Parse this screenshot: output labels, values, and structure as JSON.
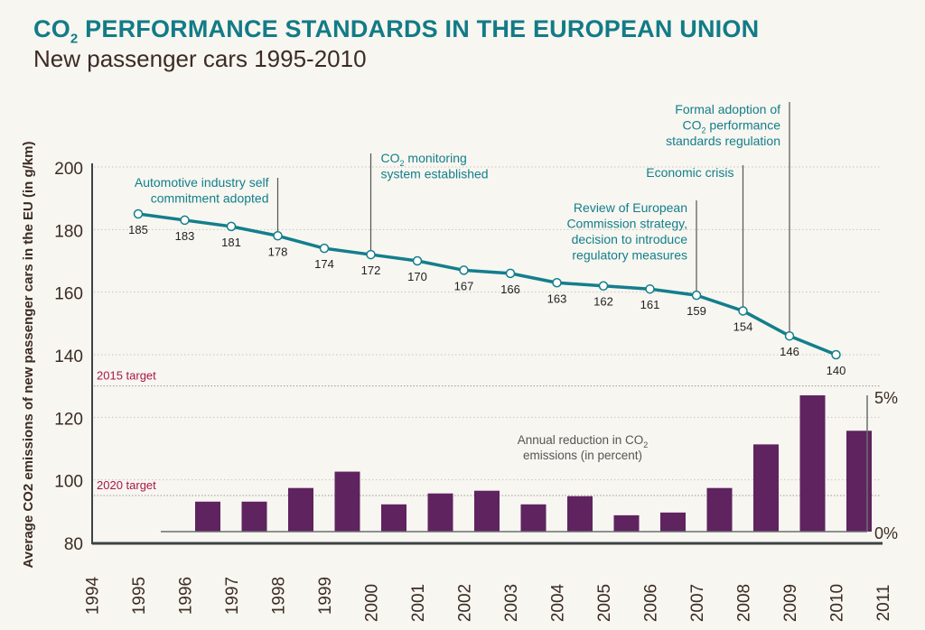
{
  "header": {
    "title_pre": "CO",
    "title_sub": "2",
    "title_post": " PERFORMANCE STANDARDS IN THE EUROPEAN UNION",
    "subtitle": "New passenger cars 1995-2010"
  },
  "colors": {
    "line": "#137e8c",
    "bars": "#5f2360",
    "targets": "#a8174a",
    "text": "#3d2b25",
    "background": "#f7f6f0"
  },
  "chart_data": {
    "type": "line+bar",
    "ylabel": "Average CO2 emissions of new passenger cars in the EU (in g/km)",
    "ylim": [
      80,
      200
    ],
    "yticks": [
      80,
      100,
      120,
      140,
      160,
      180,
      200
    ],
    "xlim": [
      1994,
      2011
    ],
    "xticks": [
      1994,
      1995,
      1996,
      1997,
      1998,
      1999,
      2000,
      2001,
      2002,
      2003,
      2004,
      2005,
      2006,
      2007,
      2008,
      2009,
      2010,
      2011
    ],
    "grid": true,
    "series": [
      {
        "type": "line",
        "x": [
          1995,
          1996,
          1997,
          1998,
          1999,
          2000,
          2001,
          2002,
          2003,
          2004,
          2005,
          2006,
          2007,
          2008,
          2009,
          2010
        ],
        "values": [
          185,
          183,
          181,
          178,
          174,
          172,
          170,
          167,
          166,
          163,
          162,
          161,
          159,
          154,
          146,
          140
        ]
      },
      {
        "type": "bar",
        "name": "Annual reduction in CO2 emissions (in percent)",
        "x": [
          1996,
          1997,
          1998,
          1999,
          2000,
          2001,
          2002,
          2003,
          2004,
          2005,
          2006,
          2007,
          2008,
          2009,
          2010
        ],
        "values": [
          1.1,
          1.1,
          1.6,
          2.2,
          1.0,
          1.4,
          1.5,
          1.0,
          1.3,
          0.6,
          0.7,
          1.6,
          3.2,
          5.0,
          3.7
        ],
        "secondary_ylim": [
          0,
          5
        ],
        "secondary_ticks": [
          "0%",
          "5%"
        ]
      }
    ],
    "targets": [
      {
        "label": "2015 target",
        "value": 130
      },
      {
        "label": "2020 target",
        "value": 95
      }
    ],
    "annotations": [
      {
        "year": 1998,
        "lines": [
          "Automotive industry self",
          "commitment adopted"
        ]
      },
      {
        "year": 2000,
        "lines": [
          "CO2 monitoring",
          "system established"
        ]
      },
      {
        "year": 2007,
        "lines": [
          "Review of European",
          "Commission strategy,",
          "decision to introduce",
          "regulatory measures"
        ]
      },
      {
        "year": 2008,
        "lines": [
          "Economic crisis"
        ]
      },
      {
        "year": 2009,
        "lines": [
          "Formal adoption of",
          "CO2 performance",
          "standards regulation"
        ]
      }
    ]
  }
}
